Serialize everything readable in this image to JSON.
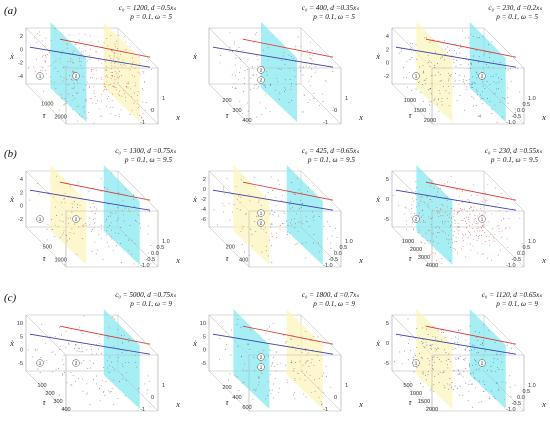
{
  "rows": [
    {
      "label": "(a)",
      "panels": [
        {
          "line1": "c₀ = 1200, d =0.5xₛ",
          "line2": "p = 0.1, ω = 5",
          "xticks": [
            "1000",
            "2000"
          ],
          "yticks": [
            "2",
            "0",
            "-2",
            "-4"
          ],
          "zticks": [
            "1",
            "0",
            "-1"
          ],
          "circles": [
            "1",
            "2"
          ],
          "cyan": "left",
          "yellow": "right",
          "dot": "red"
        },
        {
          "line1": "c₀ = 400, d =0.35xₛ",
          "line2": "p = 0.1, ω = 5",
          "xticks": [
            "200",
            "300",
            "400"
          ],
          "yticks": [],
          "zticks": [
            "1",
            "0",
            "-1"
          ],
          "circles": [
            "2",
            "2"
          ],
          "cyan": "mid",
          "yellow": "",
          "dot": "mixed"
        },
        {
          "line1": "c₀ = 230, d =0.2xₛ",
          "line2": "p = 0.1, ω = 5",
          "xticks": [
            "1000",
            "1500",
            "2000"
          ],
          "yticks": [
            "4",
            "2",
            "0",
            "-2"
          ],
          "zticks": [
            "1.0",
            "0.5",
            "0.0",
            "-0.5",
            "-1.0"
          ],
          "circles": [
            "1",
            "2"
          ],
          "cyan": "right",
          "yellow": "left",
          "dot": "blue"
        }
      ]
    },
    {
      "label": "(b)",
      "panels": [
        {
          "line1": "c₀ = 1300, d =0.75xₛ",
          "line2": "p = 0.1, ω = 9.5",
          "xticks": [
            "500",
            "1000"
          ],
          "yticks": [
            "4",
            "2",
            "0",
            "-2"
          ],
          "zticks": [
            "1.0",
            "0.5",
            "0.0",
            "-0.5",
            "-1.0"
          ],
          "circles": [
            "1",
            "2"
          ],
          "cyan": "right",
          "yellow": "left",
          "dot": "mixed"
        },
        {
          "line1": "c₀ = 425, d =0.65xₛ",
          "line2": "p = 0.1, ω = 9.5",
          "xticks": [
            "200",
            "400"
          ],
          "yticks": [
            "2",
            "0",
            "-2",
            "-4",
            "-6"
          ],
          "zticks": [
            "1.0",
            "0.5",
            "0.0",
            "-0.5",
            "-1.0"
          ],
          "circles": [
            "1",
            "2"
          ],
          "cyan": "right",
          "yellow": "left",
          "dot": "mixed"
        },
        {
          "line1": "c₀ = 230, d =0.55xₛ",
          "line2": "p = 0.1, ω = 9.5",
          "xticks": [
            "1000",
            "2000",
            "3000",
            "4000"
          ],
          "yticks": [
            "5",
            "0",
            "-5"
          ],
          "zticks": [
            "1.0",
            "0.5",
            "0.0",
            "-0.5",
            "-1.0"
          ],
          "circles": [
            "2",
            "1"
          ],
          "cyan": "left",
          "yellow": "",
          "dot": "red"
        }
      ]
    },
    {
      "label": "(c)",
      "panels": [
        {
          "line1": "c₀ = 5000, d =0.75xₛ",
          "line2": "p = 0.1, ω = 9",
          "xticks": [
            "100",
            "200",
            "300",
            "400"
          ],
          "yticks": [
            "10",
            "5",
            "0",
            "-5"
          ],
          "zticks": [
            "1",
            "0",
            "-1"
          ],
          "circles": [
            "1",
            "2"
          ],
          "cyan": "right",
          "yellow": "",
          "dot": "mixed"
        },
        {
          "line1": "c₀ = 1800, d =0.7xₛ",
          "line2": "p = 0.1, ω = 9",
          "xticks": [
            "200",
            "400",
            "600"
          ],
          "yticks": [
            "10",
            "5",
            "0",
            "-5"
          ],
          "zticks": [
            "1",
            "0",
            "-1"
          ],
          "circles": [
            "2",
            "1"
          ],
          "cyan": "left",
          "yellow": "right",
          "dot": "mixed"
        },
        {
          "line1": "c₀ = 1120, d =0.65xₛ",
          "line2": "p = 0.1, ω = 9",
          "xticks": [
            "500",
            "1000",
            "1500",
            "2000"
          ],
          "yticks": [
            "5",
            "0",
            "-5"
          ],
          "zticks": [
            "1.0",
            "0.5",
            "0.0",
            "-0.5",
            "-1.0"
          ],
          "circles": [
            "1",
            "2"
          ],
          "cyan": "right",
          "yellow": "left",
          "dot": "blue"
        }
      ]
    }
  ],
  "axis_labels": {
    "tau": "τ",
    "x": "x",
    "xdot": "ẋ"
  },
  "colors": {
    "cyan": "#7fe8ef",
    "yellow": "#fbf4b6",
    "red": "#e0322c",
    "blue": "#3a3fa8"
  }
}
